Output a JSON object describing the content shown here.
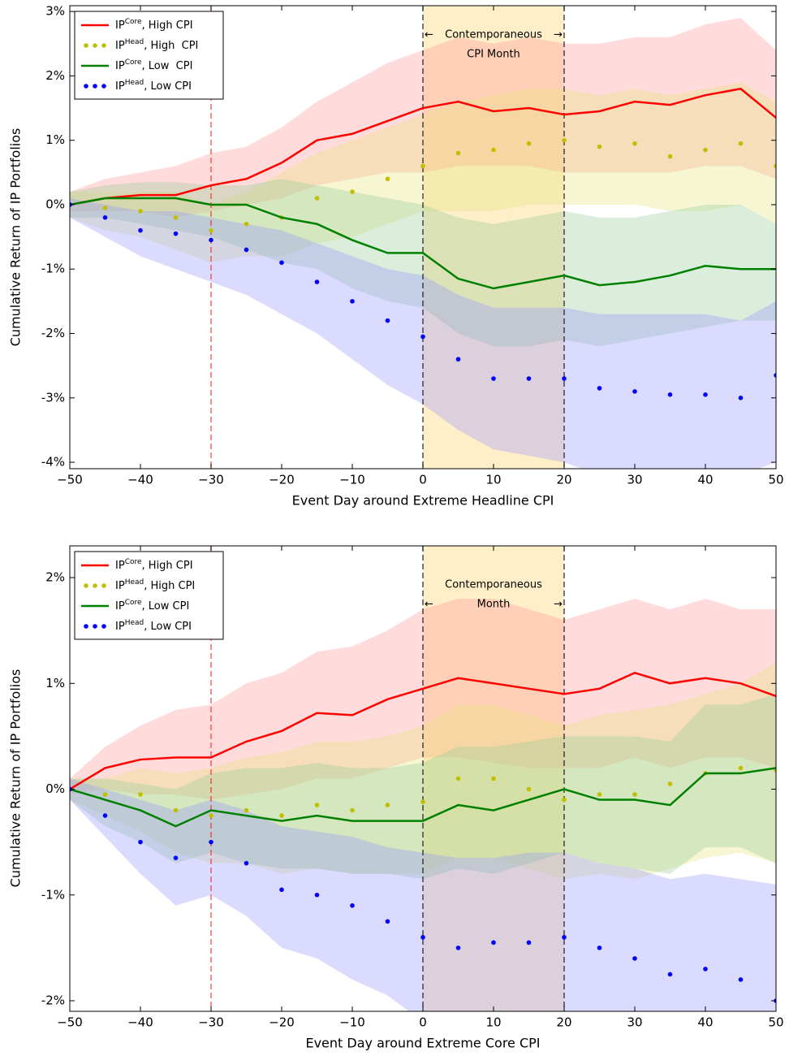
{
  "chart_data": [
    {
      "type": "line",
      "xlabel": "Event Day around Extreme Headline CPI",
      "ylabel": "Cumulative Return of IP Portfolios",
      "xlim": [
        -50,
        50
      ],
      "xticks": [
        {
          "value": -50,
          "label": "−50"
        },
        {
          "value": -40,
          "label": "−40"
        },
        {
          "value": -30,
          "label": "−30"
        },
        {
          "value": -20,
          "label": "−20"
        },
        {
          "value": -10,
          "label": "−10"
        },
        0,
        10,
        20,
        30,
        40,
        50
      ],
      "ylim": [
        -4.1,
        3.09
      ],
      "yticks": [
        {
          "value": -4,
          "label": "-4%"
        },
        {
          "value": -3,
          "label": "-3%"
        },
        {
          "value": -2,
          "label": "-2%"
        },
        {
          "value": -1,
          "label": "-1%"
        },
        {
          "value": 0,
          "label": "0%"
        },
        {
          "value": 1,
          "label": "1%"
        },
        {
          "value": 2,
          "label": "2%"
        },
        {
          "value": 3,
          "label": "3%"
        }
      ],
      "legend": "upper left",
      "x": [
        -50,
        -45,
        -40,
        -35,
        -30,
        -25,
        -20,
        -15,
        -10,
        -5,
        0,
        5,
        10,
        15,
        20,
        25,
        30,
        35,
        40,
        45,
        50
      ],
      "series": [
        {
          "name": "IP",
          "name_sup": "Core",
          "name_rest": ", High CPI",
          "style": "line",
          "color": "#ff0000",
          "band_color": "#ff9999",
          "values": [
            0,
            0.1,
            0.15,
            0.15,
            0.3,
            0.4,
            0.65,
            1.0,
            1.1,
            1.3,
            1.5,
            1.6,
            1.45,
            1.5,
            1.4,
            1.45,
            1.6,
            1.55,
            1.7,
            1.8,
            1.35
          ],
          "band_upper": [
            0.2,
            0.4,
            0.5,
            0.6,
            0.8,
            0.9,
            1.2,
            1.6,
            1.9,
            2.2,
            2.4,
            2.6,
            2.5,
            2.6,
            2.5,
            2.5,
            2.6,
            2.6,
            2.8,
            2.9,
            2.4
          ],
          "band_lower": [
            -0.1,
            -0.1,
            -0.1,
            -0.2,
            -0.1,
            0.0,
            0.1,
            0.3,
            0.4,
            0.5,
            0.5,
            0.6,
            0.6,
            0.6,
            0.5,
            0.5,
            0.5,
            0.5,
            0.6,
            0.6,
            0.4
          ]
        },
        {
          "name": "IP",
          "name_sup": "Head",
          "name_rest": ", High  CPI",
          "style": "dots",
          "color": "#bfbf00",
          "band_color": "#e6e680",
          "values": [
            0,
            -0.05,
            -0.1,
            -0.2,
            -0.4,
            -0.3,
            -0.2,
            0.1,
            0.2,
            0.4,
            0.6,
            0.8,
            0.85,
            0.95,
            1.0,
            0.9,
            0.95,
            0.75,
            0.85,
            0.95,
            0.6
          ],
          "band_upper": [
            0.2,
            0.2,
            0.2,
            0.2,
            0.0,
            0.2,
            0.5,
            0.8,
            1.0,
            1.2,
            1.4,
            1.6,
            1.7,
            1.8,
            1.8,
            1.7,
            1.8,
            1.7,
            1.8,
            1.9,
            1.6
          ],
          "band_lower": [
            -0.2,
            -0.4,
            -0.5,
            -0.7,
            -0.9,
            -0.8,
            -0.8,
            -0.6,
            -0.5,
            -0.3,
            -0.1,
            -0.1,
            -0.1,
            0.0,
            0.0,
            0.0,
            0.0,
            -0.1,
            -0.1,
            0.0,
            -0.3
          ]
        },
        {
          "name": "IP",
          "name_sup": "Core",
          "name_rest": ", Low  CPI",
          "style": "line",
          "color": "#008000",
          "band_color": "#99cc99",
          "values": [
            0,
            0.1,
            0.1,
            0.1,
            0.0,
            0.0,
            -0.2,
            -0.3,
            -0.55,
            -0.75,
            -0.75,
            -1.15,
            -1.3,
            -1.2,
            -1.1,
            -1.25,
            -1.2,
            -1.1,
            -0.95,
            -1.0,
            -1.0
          ],
          "band_upper": [
            0.2,
            0.3,
            0.35,
            0.35,
            0.3,
            0.3,
            0.4,
            0.3,
            0.2,
            0.1,
            0.0,
            -0.2,
            -0.3,
            -0.2,
            -0.1,
            -0.2,
            -0.2,
            -0.1,
            0.0,
            0.0,
            -0.3
          ],
          "band_lower": [
            -0.2,
            -0.2,
            -0.3,
            -0.4,
            -0.5,
            -0.7,
            -0.9,
            -1.0,
            -1.3,
            -1.5,
            -1.6,
            -2.0,
            -2.2,
            -2.2,
            -2.1,
            -2.2,
            -2.1,
            -2.0,
            -1.9,
            -1.8,
            -1.8
          ]
        },
        {
          "name": "IP",
          "name_sup": "Head",
          "name_rest": ", Low CPI",
          "style": "dots",
          "color": "#0000ff",
          "band_color": "#9999ff",
          "values": [
            0,
            -0.2,
            -0.4,
            -0.45,
            -0.55,
            -0.7,
            -0.9,
            -1.2,
            -1.5,
            -1.8,
            -2.05,
            -2.4,
            -2.7,
            -2.7,
            -2.7,
            -2.85,
            -2.9,
            -2.95,
            -2.95,
            -3.0,
            -2.65
          ],
          "band_upper": [
            0.1,
            0.0,
            -0.1,
            -0.1,
            -0.2,
            -0.3,
            -0.4,
            -0.6,
            -0.8,
            -1.0,
            -1.1,
            -1.4,
            -1.6,
            -1.6,
            -1.6,
            -1.7,
            -1.7,
            -1.7,
            -1.7,
            -1.8,
            -1.5
          ],
          "band_lower": [
            -0.2,
            -0.5,
            -0.8,
            -1.0,
            -1.2,
            -1.4,
            -1.7,
            -2.0,
            -2.4,
            -2.8,
            -3.1,
            -3.5,
            -3.8,
            -3.9,
            -4.0,
            -4.2,
            -4.2,
            -4.2,
            -4.2,
            -4.2,
            -4.0
          ]
        }
      ],
      "vlines": [
        {
          "x": -30,
          "color": "#ff0000"
        },
        {
          "x": 0,
          "color": "#000000"
        },
        {
          "x": 20,
          "color": "#000000"
        }
      ],
      "shade": {
        "range": [
          0,
          20
        ],
        "color": "#ffe8b0"
      },
      "annotation": [
        [
          "←",
          "Contemporaneous",
          "→"
        ],
        [
          "CPI Month"
        ]
      ]
    },
    {
      "type": "line",
      "xlabel": "Event Day around Extreme Core CPI",
      "ylabel": "Cumulative Return of IP Portfolios",
      "xlim": [
        -50,
        50
      ],
      "xticks": [
        {
          "value": -50,
          "label": "−50"
        },
        {
          "value": -40,
          "label": "−40"
        },
        {
          "value": -30,
          "label": "−30"
        },
        {
          "value": -20,
          "label": "−20"
        },
        {
          "value": -10,
          "label": "−10"
        },
        0,
        10,
        20,
        30,
        40,
        50
      ],
      "ylim": [
        -2.1,
        2.3
      ],
      "yticks": [
        {
          "value": -2,
          "label": "-2%"
        },
        {
          "value": -1,
          "label": "-1%"
        },
        {
          "value": 0,
          "label": "0%"
        },
        {
          "value": 1,
          "label": "1%"
        },
        {
          "value": 2,
          "label": "2%"
        }
      ],
      "legend": "upper left",
      "x": [
        -50,
        -45,
        -40,
        -35,
        -30,
        -25,
        -20,
        -15,
        -10,
        -5,
        0,
        5,
        10,
        15,
        20,
        25,
        30,
        35,
        40,
        45,
        50
      ],
      "series": [
        {
          "name": "IP",
          "name_sup": "Core",
          "name_rest": ", High CPI",
          "style": "line",
          "color": "#ff0000",
          "band_color": "#ff9999",
          "values": [
            0,
            0.2,
            0.28,
            0.3,
            0.3,
            0.45,
            0.55,
            0.72,
            0.7,
            0.85,
            0.95,
            1.05,
            1.0,
            0.95,
            0.9,
            0.95,
            1.1,
            1.0,
            1.05,
            1.0,
            0.88
          ],
          "band_upper": [
            0.1,
            0.4,
            0.6,
            0.75,
            0.8,
            1.0,
            1.1,
            1.3,
            1.35,
            1.5,
            1.7,
            1.8,
            1.8,
            1.7,
            1.6,
            1.7,
            1.8,
            1.7,
            1.8,
            1.7,
            1.7
          ],
          "band_lower": [
            -0.05,
            0.0,
            -0.05,
            -0.05,
            -0.1,
            -0.05,
            0.0,
            0.1,
            0.1,
            0.2,
            0.3,
            0.3,
            0.25,
            0.2,
            0.2,
            0.2,
            0.3,
            0.2,
            0.3,
            0.3,
            0.2
          ]
        },
        {
          "name": "IP",
          "name_sup": "Head",
          "name_rest": ", High CPI",
          "style": "dots",
          "color": "#bfbf00",
          "band_color": "#e6e680",
          "values": [
            0,
            -0.05,
            -0.05,
            -0.2,
            -0.25,
            -0.2,
            -0.25,
            -0.15,
            -0.2,
            -0.15,
            -0.12,
            0.1,
            0.1,
            0.0,
            -0.1,
            -0.05,
            -0.05,
            0.05,
            0.15,
            0.2,
            0.18
          ],
          "band_upper": [
            0.1,
            0.1,
            0.2,
            0.15,
            0.2,
            0.3,
            0.35,
            0.45,
            0.45,
            0.5,
            0.6,
            0.8,
            0.8,
            0.7,
            0.6,
            0.7,
            0.75,
            0.8,
            0.9,
            1.0,
            1.2
          ],
          "band_lower": [
            -0.1,
            -0.25,
            -0.4,
            -0.6,
            -0.7,
            -0.7,
            -0.8,
            -0.75,
            -0.8,
            -0.8,
            -0.8,
            -0.65,
            -0.65,
            -0.75,
            -0.85,
            -0.8,
            -0.85,
            -0.75,
            -0.65,
            -0.6,
            -0.7
          ]
        },
        {
          "name": "IP",
          "name_sup": "Core",
          "name_rest": ", Low CPI",
          "style": "line",
          "color": "#008000",
          "band_color": "#99cc99",
          "values": [
            0,
            -0.1,
            -0.2,
            -0.35,
            -0.2,
            -0.25,
            -0.3,
            -0.25,
            -0.3,
            -0.3,
            -0.3,
            -0.15,
            -0.2,
            -0.1,
            0.0,
            -0.1,
            -0.1,
            -0.15,
            0.15,
            0.15,
            0.2
          ],
          "band_upper": [
            0.1,
            0.1,
            0.05,
            0.0,
            0.15,
            0.2,
            0.2,
            0.25,
            0.2,
            0.2,
            0.25,
            0.4,
            0.4,
            0.45,
            0.5,
            0.5,
            0.5,
            0.45,
            0.8,
            0.8,
            0.9
          ],
          "band_lower": [
            -0.1,
            -0.35,
            -0.5,
            -0.7,
            -0.6,
            -0.7,
            -0.75,
            -0.75,
            -0.8,
            -0.8,
            -0.85,
            -0.75,
            -0.8,
            -0.7,
            -0.6,
            -0.7,
            -0.75,
            -0.8,
            -0.55,
            -0.55,
            -0.7
          ]
        },
        {
          "name": "IP",
          "name_sup": "Head",
          "name_rest": ", Low CPI",
          "style": "dots",
          "color": "#0000ff",
          "band_color": "#9999ff",
          "values": [
            0,
            -0.25,
            -0.5,
            -0.65,
            -0.5,
            -0.7,
            -0.95,
            -1.0,
            -1.1,
            -1.25,
            -1.4,
            -1.5,
            -1.45,
            -1.45,
            -1.4,
            -1.5,
            -1.6,
            -1.75,
            -1.7,
            -1.8,
            -2.0
          ],
          "band_upper": [
            0.1,
            0.0,
            -0.1,
            -0.2,
            -0.1,
            -0.2,
            -0.35,
            -0.4,
            -0.45,
            -0.55,
            -0.6,
            -0.65,
            -0.65,
            -0.6,
            -0.6,
            -0.7,
            -0.75,
            -0.85,
            -0.8,
            -0.85,
            -0.9
          ],
          "band_lower": [
            -0.1,
            -0.45,
            -0.8,
            -1.1,
            -1.0,
            -1.2,
            -1.5,
            -1.6,
            -1.8,
            -1.95,
            -2.2,
            -2.3,
            -2.3,
            -2.3,
            -2.2,
            -2.3,
            -2.4,
            -2.6,
            -2.6,
            -2.7,
            -2.9
          ]
        }
      ],
      "vlines": [
        {
          "x": -30,
          "color": "#ff0000"
        },
        {
          "x": 0,
          "color": "#000000"
        },
        {
          "x": 20,
          "color": "#000000"
        }
      ],
      "shade": {
        "range": [
          0,
          20
        ],
        "color": "#ffe8b0"
      },
      "annotation": [
        [
          "Contemporaneous"
        ],
        [
          "←",
          "Month",
          "→"
        ]
      ]
    }
  ]
}
